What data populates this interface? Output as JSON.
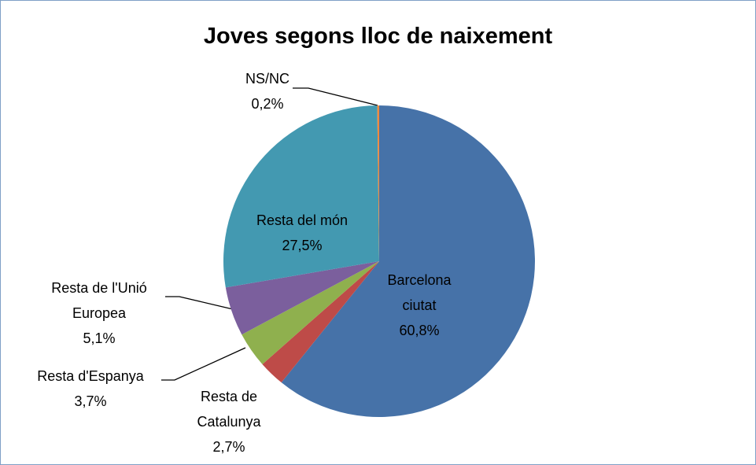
{
  "chart_data": {
    "type": "pie",
    "title": "Joves segons lloc de naixement",
    "categories": [
      "Barcelona ciutat",
      "Resta de Catalunya",
      "Resta d'Espanya",
      "Resta de l'Unió Europea",
      "Resta del món",
      "NS/NC"
    ],
    "values": [
      60.8,
      2.7,
      3.7,
      5.1,
      27.5,
      0.2
    ],
    "value_labels": [
      "60,8%",
      "2,7%",
      "3,7%",
      "5,1%",
      "27,5%",
      "0,2%"
    ],
    "colors": [
      "#4672a8",
      "#be4b48",
      "#8fb04e",
      "#7b5f9d",
      "#4399b1",
      "#f08a3c"
    ]
  }
}
